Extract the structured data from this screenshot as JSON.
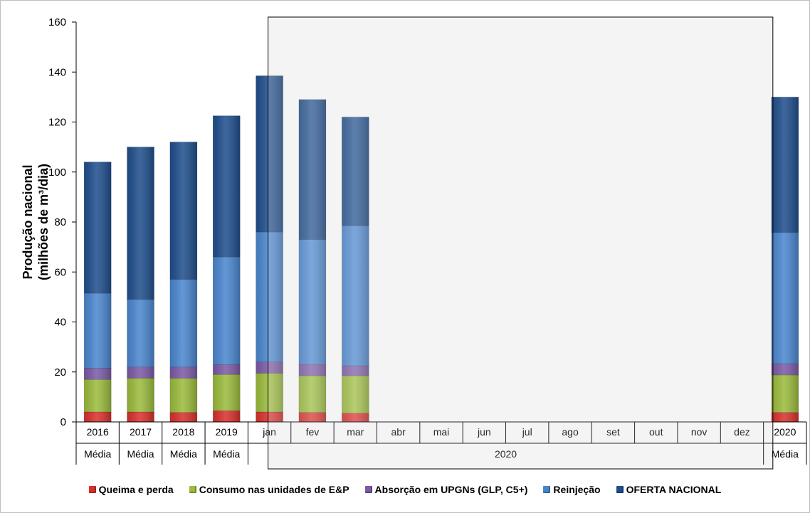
{
  "chart_data": {
    "type": "bar",
    "stacked": true,
    "ylabel_lines": [
      "Produção nacional",
      "(milhões de m³/dia)"
    ],
    "ylim": [
      0,
      160
    ],
    "yticks": [
      0,
      20,
      40,
      60,
      80,
      100,
      120,
      140,
      160
    ],
    "grid": false,
    "legend_position": "bottom",
    "categories": [
      "2016",
      "2017",
      "2018",
      "2019",
      "jan",
      "fev",
      "mar",
      "abr",
      "mai",
      "jun",
      "jul",
      "ago",
      "set",
      "out",
      "nov",
      "dez",
      "2020"
    ],
    "category_groups": [
      {
        "label": "Média",
        "span": 1
      },
      {
        "label": "Média",
        "span": 1
      },
      {
        "label": "Média",
        "span": 1
      },
      {
        "label": "Média",
        "span": 1
      },
      {
        "label": "2020",
        "span": 12
      },
      {
        "label": "Média",
        "span": 1
      }
    ],
    "series": [
      {
        "name": "Queima e perda",
        "color": "#d9302c",
        "values": [
          4.0,
          4.0,
          3.8,
          4.5,
          4.0,
          3.8,
          3.5,
          0,
          0,
          0,
          0,
          0,
          0,
          0,
          0,
          0,
          3.8
        ]
      },
      {
        "name": "Consumo nas unidades de E&P",
        "color": "#9bbb3c",
        "values": [
          13.0,
          13.5,
          13.7,
          14.5,
          15.5,
          14.7,
          15.0,
          0,
          0,
          0,
          0,
          0,
          0,
          0,
          0,
          0,
          15.0
        ]
      },
      {
        "name": "Absorção em UPGNs (GLP, C5+)",
        "color": "#7b5aa6",
        "values": [
          4.5,
          4.5,
          4.5,
          4.0,
          4.5,
          4.5,
          4.0,
          0,
          0,
          0,
          0,
          0,
          0,
          0,
          0,
          0,
          4.5
        ]
      },
      {
        "name": "Reinjeção",
        "color": "#4a86cf",
        "values": [
          30.0,
          27.0,
          35.0,
          43.0,
          52.0,
          50.0,
          56.0,
          0,
          0,
          0,
          0,
          0,
          0,
          0,
          0,
          0,
          52.5
        ]
      },
      {
        "name": "OFERTA NACIONAL",
        "color": "#1f4e8c",
        "values": [
          52.5,
          61.0,
          55.0,
          56.5,
          62.5,
          56.0,
          43.5,
          0,
          0,
          0,
          0,
          0,
          0,
          0,
          0,
          0,
          54.2
        ]
      }
    ],
    "highlight_box": {
      "from_category": "jan",
      "to_category": "2020"
    }
  }
}
